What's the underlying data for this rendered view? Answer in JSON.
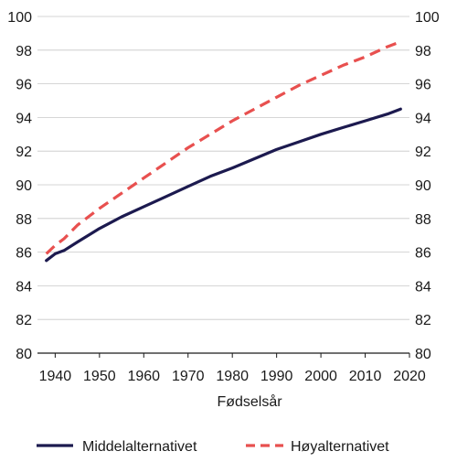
{
  "chart_data": {
    "type": "line",
    "title": "",
    "xlabel": "Fødselsår",
    "ylabel": "",
    "xlim": [
      1936,
      2020
    ],
    "ylim": [
      80,
      100
    ],
    "xticks": [
      1940,
      1950,
      1960,
      1970,
      1980,
      1990,
      2000,
      2010,
      2020
    ],
    "yticks": [
      80,
      82,
      84,
      86,
      88,
      90,
      92,
      94,
      96,
      98,
      100
    ],
    "grid": true,
    "legend": "bottom",
    "series": [
      {
        "name": "Middelalternativet",
        "color": "#1c1a4f",
        "style": "solid",
        "x": [
          1938,
          1940,
          1942,
          1945,
          1950,
          1955,
          1960,
          1965,
          1970,
          1975,
          1980,
          1985,
          1990,
          1995,
          2000,
          2005,
          2010,
          2015,
          2018
        ],
        "y": [
          85.5,
          85.9,
          86.1,
          86.6,
          87.4,
          88.1,
          88.7,
          89.3,
          89.9,
          90.5,
          91.0,
          91.55,
          92.1,
          92.55,
          93.0,
          93.4,
          93.8,
          94.2,
          94.5
        ]
      },
      {
        "name": "Høyalternativet",
        "color": "#e8504f",
        "style": "dashed",
        "x": [
          1938,
          1940,
          1942,
          1945,
          1950,
          1955,
          1960,
          1965,
          1970,
          1975,
          1980,
          1985,
          1990,
          1995,
          2000,
          2005,
          2010,
          2015,
          2018
        ],
        "y": [
          85.9,
          86.4,
          86.8,
          87.6,
          88.6,
          89.5,
          90.4,
          91.3,
          92.2,
          93.0,
          93.8,
          94.5,
          95.2,
          95.9,
          96.5,
          97.1,
          97.6,
          98.2,
          98.5
        ]
      }
    ]
  }
}
